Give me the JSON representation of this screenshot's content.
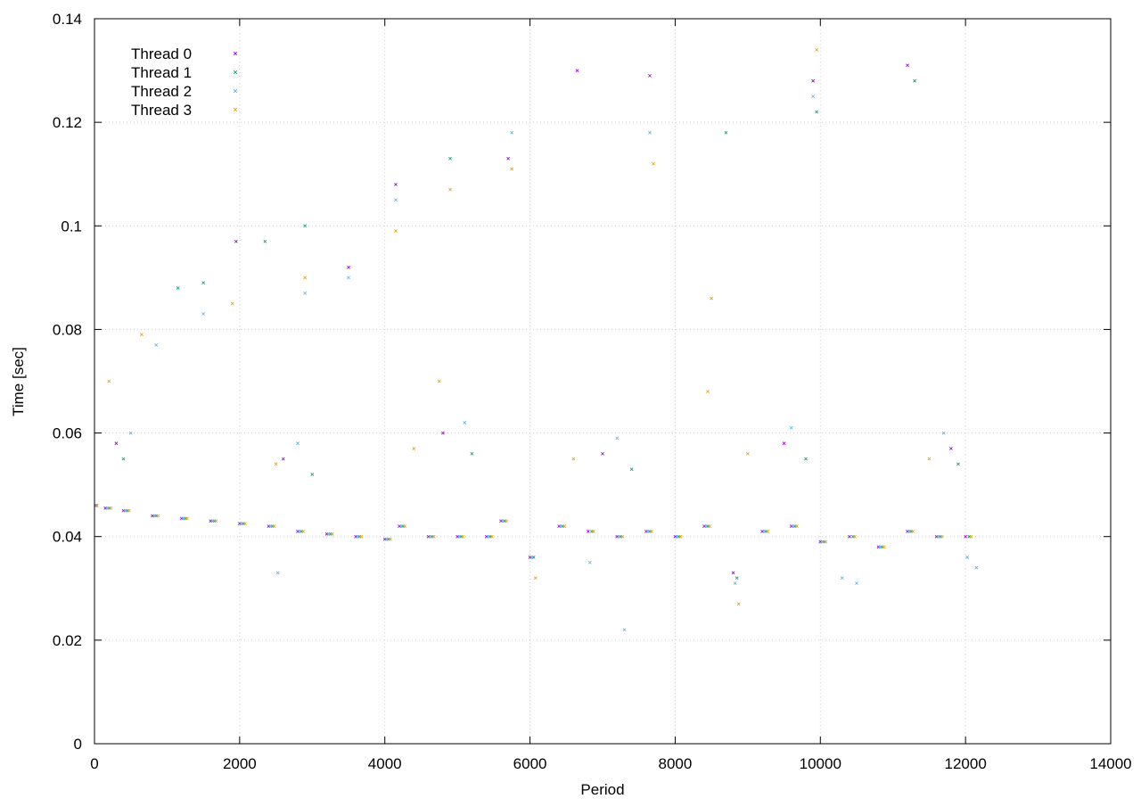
{
  "chart_data": {
    "type": "scatter",
    "title": "",
    "xlabel": "Period",
    "ylabel": "Time [sec]",
    "xlim": [
      0,
      14000
    ],
    "ylim": [
      0,
      0.14
    ],
    "xticks": [
      "0",
      "2000",
      "4000",
      "6000",
      "8000",
      "10000",
      "12000",
      "14000"
    ],
    "yticks": [
      "0",
      "0.02",
      "0.04",
      "0.06",
      "0.08",
      "0.1",
      "0.12",
      "0.14"
    ],
    "grid": true,
    "legend_position": "top-left",
    "series": [
      {
        "name": "Thread 0",
        "color": "#9400d3",
        "points": [
          [
            20,
            0.046
          ],
          [
            150,
            0.0455
          ],
          [
            400,
            0.045
          ],
          [
            800,
            0.044
          ],
          [
            1200,
            0.0435
          ],
          [
            1600,
            0.043
          ],
          [
            2000,
            0.0425
          ],
          [
            2400,
            0.042
          ],
          [
            2800,
            0.041
          ],
          [
            3200,
            0.0405
          ],
          [
            3600,
            0.04
          ],
          [
            4000,
            0.0395
          ],
          [
            4200,
            0.042
          ],
          [
            4600,
            0.04
          ],
          [
            5000,
            0.04
          ],
          [
            5400,
            0.04
          ],
          [
            5600,
            0.043
          ],
          [
            6000,
            0.036
          ],
          [
            6400,
            0.042
          ],
          [
            6800,
            0.041
          ],
          [
            7200,
            0.04
          ],
          [
            7600,
            0.041
          ],
          [
            8000,
            0.04
          ],
          [
            8400,
            0.042
          ],
          [
            8800,
            0.033
          ],
          [
            9200,
            0.041
          ],
          [
            9600,
            0.042
          ],
          [
            10000,
            0.039
          ],
          [
            10400,
            0.04
          ],
          [
            10800,
            0.038
          ],
          [
            11200,
            0.041
          ],
          [
            11600,
            0.04
          ],
          [
            12000,
            0.04
          ],
          [
            1950,
            0.097
          ],
          [
            4150,
            0.108
          ],
          [
            6650,
            0.13
          ],
          [
            7650,
            0.129
          ],
          [
            9900,
            0.128
          ],
          [
            11200,
            0.131
          ],
          [
            3500,
            0.092
          ],
          [
            5700,
            0.113
          ],
          [
            300,
            0.058
          ],
          [
            2600,
            0.055
          ],
          [
            4800,
            0.06
          ],
          [
            7000,
            0.056
          ],
          [
            9500,
            0.058
          ],
          [
            11800,
            0.057
          ]
        ]
      },
      {
        "name": "Thread 1",
        "color": "#009e73",
        "points": [
          [
            30,
            0.046
          ],
          [
            200,
            0.0455
          ],
          [
            450,
            0.045
          ],
          [
            850,
            0.044
          ],
          [
            1250,
            0.0435
          ],
          [
            1650,
            0.043
          ],
          [
            2050,
            0.0425
          ],
          [
            2450,
            0.042
          ],
          [
            2850,
            0.041
          ],
          [
            3250,
            0.0405
          ],
          [
            3650,
            0.04
          ],
          [
            4050,
            0.0395
          ],
          [
            4250,
            0.042
          ],
          [
            4650,
            0.04
          ],
          [
            5050,
            0.04
          ],
          [
            5450,
            0.04
          ],
          [
            5650,
            0.043
          ],
          [
            6050,
            0.036
          ],
          [
            6450,
            0.042
          ],
          [
            6850,
            0.041
          ],
          [
            7250,
            0.04
          ],
          [
            7650,
            0.041
          ],
          [
            8050,
            0.04
          ],
          [
            8450,
            0.042
          ],
          [
            8850,
            0.032
          ],
          [
            9250,
            0.041
          ],
          [
            9650,
            0.042
          ],
          [
            10050,
            0.039
          ],
          [
            10450,
            0.04
          ],
          [
            10850,
            0.038
          ],
          [
            11250,
            0.041
          ],
          [
            11650,
            0.04
          ],
          [
            12050,
            0.04
          ],
          [
            1150,
            0.088
          ],
          [
            2350,
            0.097
          ],
          [
            4900,
            0.113
          ],
          [
            8700,
            0.118
          ],
          [
            9950,
            0.122
          ],
          [
            11300,
            0.128
          ],
          [
            1500,
            0.089
          ],
          [
            2900,
            0.1
          ],
          [
            400,
            0.055
          ],
          [
            3000,
            0.052
          ],
          [
            5200,
            0.056
          ],
          [
            7400,
            0.053
          ],
          [
            9800,
            0.055
          ],
          [
            11900,
            0.054
          ]
        ]
      },
      {
        "name": "Thread 2",
        "color": "#56b4e9",
        "points": [
          [
            25,
            0.046
          ],
          [
            175,
            0.0455
          ],
          [
            425,
            0.045
          ],
          [
            825,
            0.044
          ],
          [
            1225,
            0.0435
          ],
          [
            1625,
            0.043
          ],
          [
            2025,
            0.0425
          ],
          [
            2425,
            0.042
          ],
          [
            2525,
            0.033
          ],
          [
            2825,
            0.041
          ],
          [
            3225,
            0.0405
          ],
          [
            3625,
            0.04
          ],
          [
            4025,
            0.0395
          ],
          [
            4225,
            0.042
          ],
          [
            4625,
            0.04
          ],
          [
            5025,
            0.04
          ],
          [
            5425,
            0.04
          ],
          [
            5625,
            0.043
          ],
          [
            6025,
            0.036
          ],
          [
            6425,
            0.042
          ],
          [
            6825,
            0.035
          ],
          [
            7225,
            0.04
          ],
          [
            7300,
            0.022
          ],
          [
            7625,
            0.041
          ],
          [
            8025,
            0.04
          ],
          [
            8425,
            0.042
          ],
          [
            8825,
            0.031
          ],
          [
            9225,
            0.041
          ],
          [
            9625,
            0.042
          ],
          [
            10025,
            0.039
          ],
          [
            10300,
            0.032
          ],
          [
            10500,
            0.031
          ],
          [
            10825,
            0.038
          ],
          [
            11225,
            0.041
          ],
          [
            11625,
            0.04
          ],
          [
            12025,
            0.036
          ],
          [
            12150,
            0.034
          ],
          [
            850,
            0.077
          ],
          [
            1500,
            0.083
          ],
          [
            3500,
            0.09
          ],
          [
            5750,
            0.118
          ],
          [
            7650,
            0.118
          ],
          [
            9900,
            0.125
          ],
          [
            4150,
            0.105
          ],
          [
            2900,
            0.087
          ],
          [
            500,
            0.06
          ],
          [
            2800,
            0.058
          ],
          [
            5100,
            0.062
          ],
          [
            7200,
            0.059
          ],
          [
            9600,
            0.061
          ],
          [
            11700,
            0.06
          ]
        ]
      },
      {
        "name": "Thread 3",
        "color": "#e69f00",
        "points": [
          [
            35,
            0.046
          ],
          [
            225,
            0.0455
          ],
          [
            475,
            0.045
          ],
          [
            875,
            0.044
          ],
          [
            1275,
            0.0435
          ],
          [
            1675,
            0.043
          ],
          [
            2075,
            0.0425
          ],
          [
            2475,
            0.042
          ],
          [
            2875,
            0.041
          ],
          [
            3275,
            0.0405
          ],
          [
            3675,
            0.04
          ],
          [
            4075,
            0.0395
          ],
          [
            4275,
            0.042
          ],
          [
            4675,
            0.04
          ],
          [
            5075,
            0.04
          ],
          [
            5475,
            0.04
          ],
          [
            5675,
            0.043
          ],
          [
            6075,
            0.032
          ],
          [
            6475,
            0.042
          ],
          [
            6875,
            0.041
          ],
          [
            7275,
            0.04
          ],
          [
            7675,
            0.041
          ],
          [
            8075,
            0.04
          ],
          [
            8475,
            0.042
          ],
          [
            8875,
            0.027
          ],
          [
            9275,
            0.041
          ],
          [
            9675,
            0.042
          ],
          [
            10075,
            0.039
          ],
          [
            10475,
            0.04
          ],
          [
            10875,
            0.038
          ],
          [
            11275,
            0.041
          ],
          [
            11675,
            0.04
          ],
          [
            12075,
            0.04
          ],
          [
            650,
            0.079
          ],
          [
            1900,
            0.085
          ],
          [
            2900,
            0.09
          ],
          [
            4150,
            0.099
          ],
          [
            4900,
            0.107
          ],
          [
            5750,
            0.111
          ],
          [
            7700,
            0.112
          ],
          [
            8500,
            0.086
          ],
          [
            9950,
            0.134
          ],
          [
            4750,
            0.07
          ],
          [
            8450,
            0.068
          ],
          [
            200,
            0.07
          ],
          [
            2500,
            0.054
          ],
          [
            4400,
            0.057
          ],
          [
            6600,
            0.055
          ],
          [
            9000,
            0.056
          ],
          [
            11500,
            0.055
          ]
        ]
      }
    ]
  }
}
